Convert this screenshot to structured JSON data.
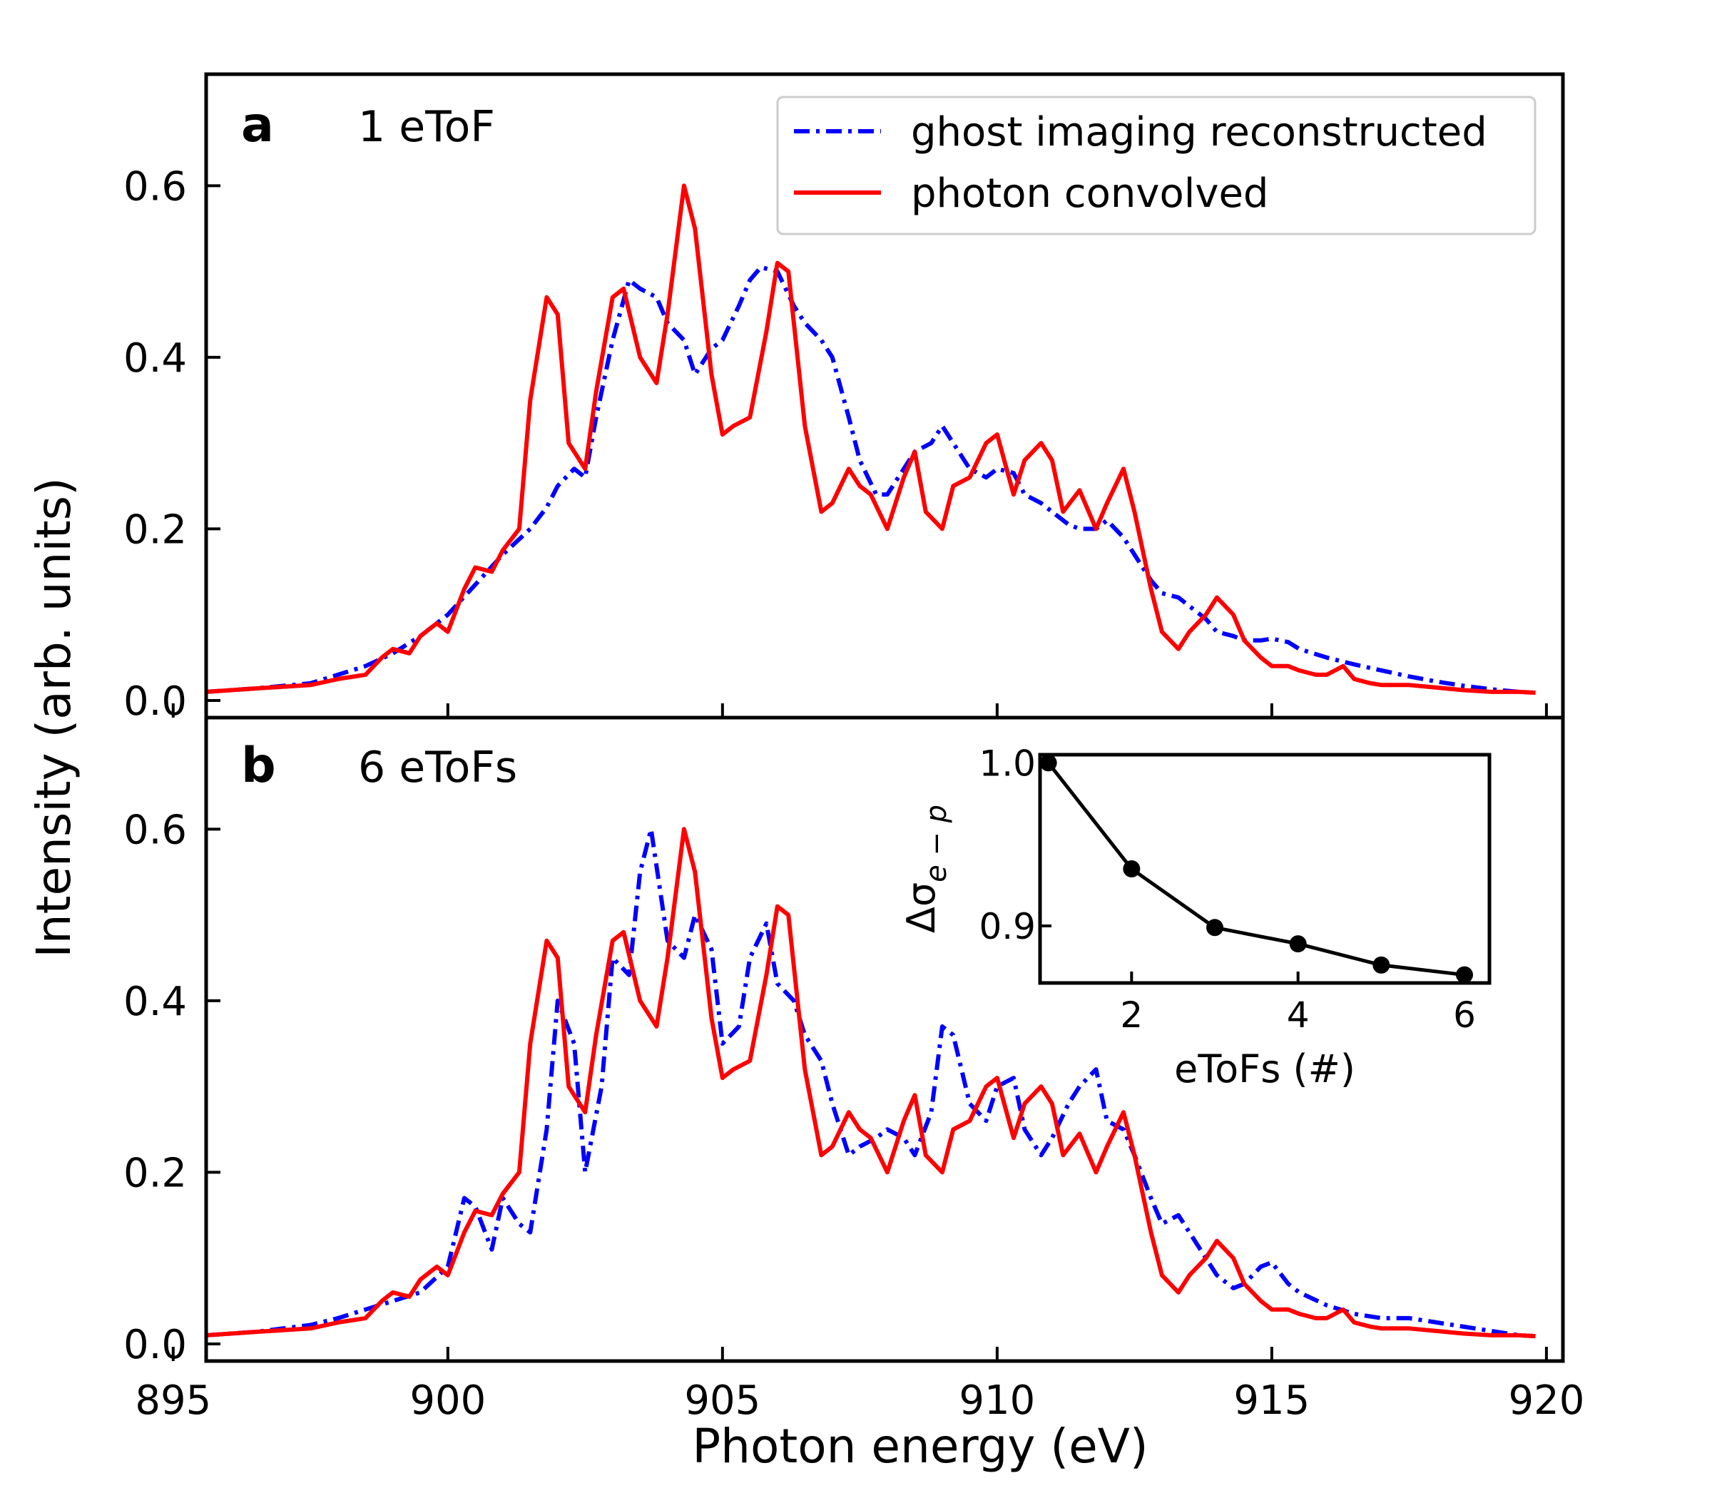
{
  "chart_data": {
    "type": "line",
    "xlabel": "Photon energy (eV)",
    "ylabel": "Intensity (arb. units)",
    "xlim": [
      895.6,
      920.3
    ],
    "x_ticks": [
      "895",
      "900",
      "905",
      "910",
      "915",
      "920"
    ],
    "x_tick_values": [
      895,
      900,
      905,
      910,
      915,
      920
    ],
    "legend": {
      "position": "top-right",
      "entries": [
        {
          "label": "ghost imaging reconstructed",
          "color": "#0000ff",
          "style": "dash-dot"
        },
        {
          "label": "photon convolved",
          "color": "#ff0000",
          "style": "solid"
        }
      ]
    },
    "panels": [
      {
        "letter": "a",
        "tag": "1 eToF",
        "ylim": [
          -0.02,
          0.73
        ],
        "y_ticks": [
          "0.0",
          "0.2",
          "0.4",
          "0.6"
        ],
        "y_tick_values": [
          0.0,
          0.2,
          0.4,
          0.6
        ],
        "series": [
          {
            "name": "ghost imaging reconstructed",
            "color": "#0000ff",
            "style": "dash-dot",
            "x": [
              895.6,
              896.5,
              897.5,
              898.0,
              898.5,
              899.0,
              899.5,
              900.0,
              900.5,
              901.0,
              901.5,
              901.8,
              902.0,
              902.3,
              902.5,
              902.7,
              903.0,
              903.3,
              903.5,
              903.8,
              904.0,
              904.3,
              904.5,
              904.8,
              905.0,
              905.3,
              905.5,
              905.7,
              906.0,
              906.3,
              906.5,
              906.8,
              907.0,
              907.3,
              907.5,
              907.8,
              908.0,
              908.3,
              908.5,
              908.8,
              909.0,
              909.2,
              909.5,
              909.8,
              910.0,
              910.3,
              910.5,
              910.8,
              911.0,
              911.3,
              911.5,
              911.8,
              912.0,
              912.3,
              912.5,
              912.8,
              913.0,
              913.3,
              913.5,
              913.8,
              914.0,
              914.3,
              914.5,
              914.8,
              915.0,
              915.3,
              915.5,
              916.0,
              916.5,
              917.0,
              917.5,
              918.0,
              918.5,
              919.0,
              919.5,
              919.8
            ],
            "y": [
              0.01,
              0.014,
              0.02,
              0.03,
              0.04,
              0.055,
              0.075,
              0.1,
              0.135,
              0.17,
              0.2,
              0.225,
              0.25,
              0.27,
              0.26,
              0.33,
              0.42,
              0.49,
              0.48,
              0.47,
              0.44,
              0.42,
              0.38,
              0.41,
              0.42,
              0.46,
              0.49,
              0.505,
              0.5,
              0.46,
              0.44,
              0.42,
              0.4,
              0.33,
              0.28,
              0.24,
              0.24,
              0.27,
              0.29,
              0.3,
              0.32,
              0.3,
              0.27,
              0.26,
              0.27,
              0.265,
              0.24,
              0.23,
              0.22,
              0.205,
              0.2,
              0.2,
              0.21,
              0.19,
              0.17,
              0.14,
              0.125,
              0.12,
              0.11,
              0.095,
              0.08,
              0.075,
              0.07,
              0.07,
              0.072,
              0.068,
              0.06,
              0.05,
              0.042,
              0.035,
              0.028,
              0.022,
              0.017,
              0.013,
              0.01,
              0.009
            ]
          },
          {
            "name": "photon convolved",
            "color": "#ff0000",
            "style": "solid",
            "x": [
              895.6,
              896.5,
              897.5,
              898.0,
              898.5,
              898.8,
              899.0,
              899.3,
              899.5,
              899.8,
              900.0,
              900.3,
              900.5,
              900.8,
              901.0,
              901.3,
              901.5,
              901.8,
              902.0,
              902.2,
              902.5,
              902.7,
              903.0,
              903.2,
              903.5,
              903.8,
              904.0,
              904.3,
              904.5,
              904.8,
              905.0,
              905.2,
              905.5,
              905.8,
              906.0,
              906.2,
              906.5,
              906.8,
              907.0,
              907.3,
              907.5,
              907.7,
              908.0,
              908.3,
              908.5,
              908.7,
              909.0,
              909.2,
              909.5,
              909.8,
              910.0,
              910.3,
              910.5,
              910.8,
              911.0,
              911.2,
              911.5,
              911.8,
              912.0,
              912.3,
              912.5,
              912.8,
              913.0,
              913.3,
              913.5,
              913.8,
              914.0,
              914.3,
              914.5,
              914.8,
              915.0,
              915.3,
              915.5,
              915.8,
              916.0,
              916.3,
              916.5,
              916.8,
              917.0,
              917.5,
              918.0,
              918.5,
              919.0,
              919.5,
              919.8
            ],
            "y": [
              0.01,
              0.014,
              0.018,
              0.025,
              0.03,
              0.05,
              0.06,
              0.055,
              0.075,
              0.09,
              0.08,
              0.13,
              0.155,
              0.15,
              0.175,
              0.2,
              0.35,
              0.47,
              0.45,
              0.3,
              0.27,
              0.36,
              0.47,
              0.48,
              0.4,
              0.37,
              0.45,
              0.6,
              0.55,
              0.38,
              0.31,
              0.32,
              0.33,
              0.43,
              0.51,
              0.5,
              0.32,
              0.22,
              0.23,
              0.27,
              0.25,
              0.24,
              0.2,
              0.26,
              0.29,
              0.22,
              0.2,
              0.25,
              0.26,
              0.3,
              0.31,
              0.24,
              0.28,
              0.3,
              0.28,
              0.22,
              0.245,
              0.2,
              0.23,
              0.27,
              0.22,
              0.13,
              0.08,
              0.06,
              0.08,
              0.1,
              0.12,
              0.1,
              0.07,
              0.05,
              0.04,
              0.04,
              0.035,
              0.03,
              0.03,
              0.04,
              0.025,
              0.02,
              0.018,
              0.018,
              0.015,
              0.012,
              0.01,
              0.01,
              0.009
            ]
          }
        ]
      },
      {
        "letter": "b",
        "tag": "6 eToFs",
        "ylim": [
          -0.02,
          0.73
        ],
        "y_ticks": [
          "0.0",
          "0.2",
          "0.4",
          "0.6"
        ],
        "y_tick_values": [
          0.0,
          0.2,
          0.4,
          0.6
        ],
        "series": [
          {
            "name": "ghost imaging reconstructed",
            "color": "#0000ff",
            "style": "dash-dot",
            "x": [
              895.6,
              896.5,
              897.5,
              898.0,
              898.5,
              899.0,
              899.5,
              900.0,
              900.3,
              900.5,
              900.8,
              901.0,
              901.3,
              901.5,
              901.8,
              902.0,
              902.3,
              902.5,
              902.8,
              903.0,
              903.3,
              903.5,
              903.7,
              904.0,
              904.3,
              904.5,
              904.8,
              905.0,
              905.3,
              905.5,
              905.8,
              906.0,
              906.3,
              906.5,
              906.8,
              907.0,
              907.3,
              907.5,
              907.8,
              908.0,
              908.3,
              908.5,
              908.8,
              909.0,
              909.2,
              909.5,
              909.8,
              910.0,
              910.3,
              910.5,
              910.8,
              911.0,
              911.3,
              911.5,
              911.8,
              912.0,
              912.3,
              912.5,
              912.8,
              913.0,
              913.3,
              913.5,
              913.8,
              914.0,
              914.3,
              914.5,
              914.8,
              915.0,
              915.3,
              915.5,
              916.0,
              916.5,
              917.0,
              917.5,
              918.0,
              918.5,
              919.0,
              919.5,
              919.8
            ],
            "y": [
              0.01,
              0.014,
              0.022,
              0.03,
              0.04,
              0.05,
              0.06,
              0.09,
              0.17,
              0.16,
              0.11,
              0.17,
              0.14,
              0.13,
              0.25,
              0.4,
              0.35,
              0.2,
              0.3,
              0.45,
              0.43,
              0.55,
              0.6,
              0.47,
              0.45,
              0.5,
              0.46,
              0.35,
              0.37,
              0.45,
              0.49,
              0.42,
              0.4,
              0.36,
              0.33,
              0.28,
              0.22,
              0.23,
              0.24,
              0.25,
              0.24,
              0.22,
              0.27,
              0.37,
              0.36,
              0.28,
              0.26,
              0.3,
              0.31,
              0.25,
              0.22,
              0.24,
              0.28,
              0.3,
              0.32,
              0.26,
              0.25,
              0.22,
              0.17,
              0.14,
              0.15,
              0.13,
              0.1,
              0.08,
              0.065,
              0.07,
              0.09,
              0.095,
              0.07,
              0.06,
              0.045,
              0.035,
              0.03,
              0.03,
              0.025,
              0.02,
              0.015,
              0.01,
              0.009
            ]
          },
          {
            "name": "photon convolved",
            "color": "#ff0000",
            "style": "solid",
            "x": [
              895.6,
              896.5,
              897.5,
              898.0,
              898.5,
              898.8,
              899.0,
              899.3,
              899.5,
              899.8,
              900.0,
              900.3,
              900.5,
              900.8,
              901.0,
              901.3,
              901.5,
              901.8,
              902.0,
              902.2,
              902.5,
              902.7,
              903.0,
              903.2,
              903.5,
              903.8,
              904.0,
              904.3,
              904.5,
              904.8,
              905.0,
              905.2,
              905.5,
              905.8,
              906.0,
              906.2,
              906.5,
              906.8,
              907.0,
              907.3,
              907.5,
              907.7,
              908.0,
              908.3,
              908.5,
              908.7,
              909.0,
              909.2,
              909.5,
              909.8,
              910.0,
              910.3,
              910.5,
              910.8,
              911.0,
              911.2,
              911.5,
              911.8,
              912.0,
              912.3,
              912.5,
              912.8,
              913.0,
              913.3,
              913.5,
              913.8,
              914.0,
              914.3,
              914.5,
              914.8,
              915.0,
              915.3,
              915.5,
              915.8,
              916.0,
              916.3,
              916.5,
              916.8,
              917.0,
              917.5,
              918.0,
              918.5,
              919.0,
              919.5,
              919.8
            ],
            "y": [
              0.01,
              0.014,
              0.018,
              0.025,
              0.03,
              0.05,
              0.06,
              0.055,
              0.075,
              0.09,
              0.08,
              0.13,
              0.155,
              0.15,
              0.175,
              0.2,
              0.35,
              0.47,
              0.45,
              0.3,
              0.27,
              0.36,
              0.47,
              0.48,
              0.4,
              0.37,
              0.45,
              0.6,
              0.55,
              0.38,
              0.31,
              0.32,
              0.33,
              0.43,
              0.51,
              0.5,
              0.32,
              0.22,
              0.23,
              0.27,
              0.25,
              0.24,
              0.2,
              0.26,
              0.29,
              0.22,
              0.2,
              0.25,
              0.26,
              0.3,
              0.31,
              0.24,
              0.28,
              0.3,
              0.28,
              0.22,
              0.245,
              0.2,
              0.23,
              0.27,
              0.22,
              0.13,
              0.08,
              0.06,
              0.08,
              0.1,
              0.12,
              0.1,
              0.07,
              0.05,
              0.04,
              0.04,
              0.035,
              0.03,
              0.03,
              0.04,
              0.025,
              0.02,
              0.018,
              0.018,
              0.015,
              0.012,
              0.01,
              0.01,
              0.009
            ]
          }
        ]
      }
    ],
    "inset": {
      "type": "line",
      "xlabel": "eToFs (#)",
      "ylabel_main": "Δσ",
      "ylabel_sub": "e − p",
      "xlim": [
        0.9,
        6.3
      ],
      "ylim": [
        0.865,
        1.005
      ],
      "x_ticks": [
        "2",
        "4",
        "6"
      ],
      "x_tick_values": [
        2,
        4,
        6
      ],
      "y_ticks": [
        "0.9",
        "1.0"
      ],
      "y_tick_values": [
        0.9,
        1.0
      ],
      "x": [
        1,
        2,
        3,
        4,
        5,
        6
      ],
      "y": [
        1.0,
        0.935,
        0.899,
        0.889,
        0.876,
        0.87
      ],
      "color": "#000000"
    }
  }
}
